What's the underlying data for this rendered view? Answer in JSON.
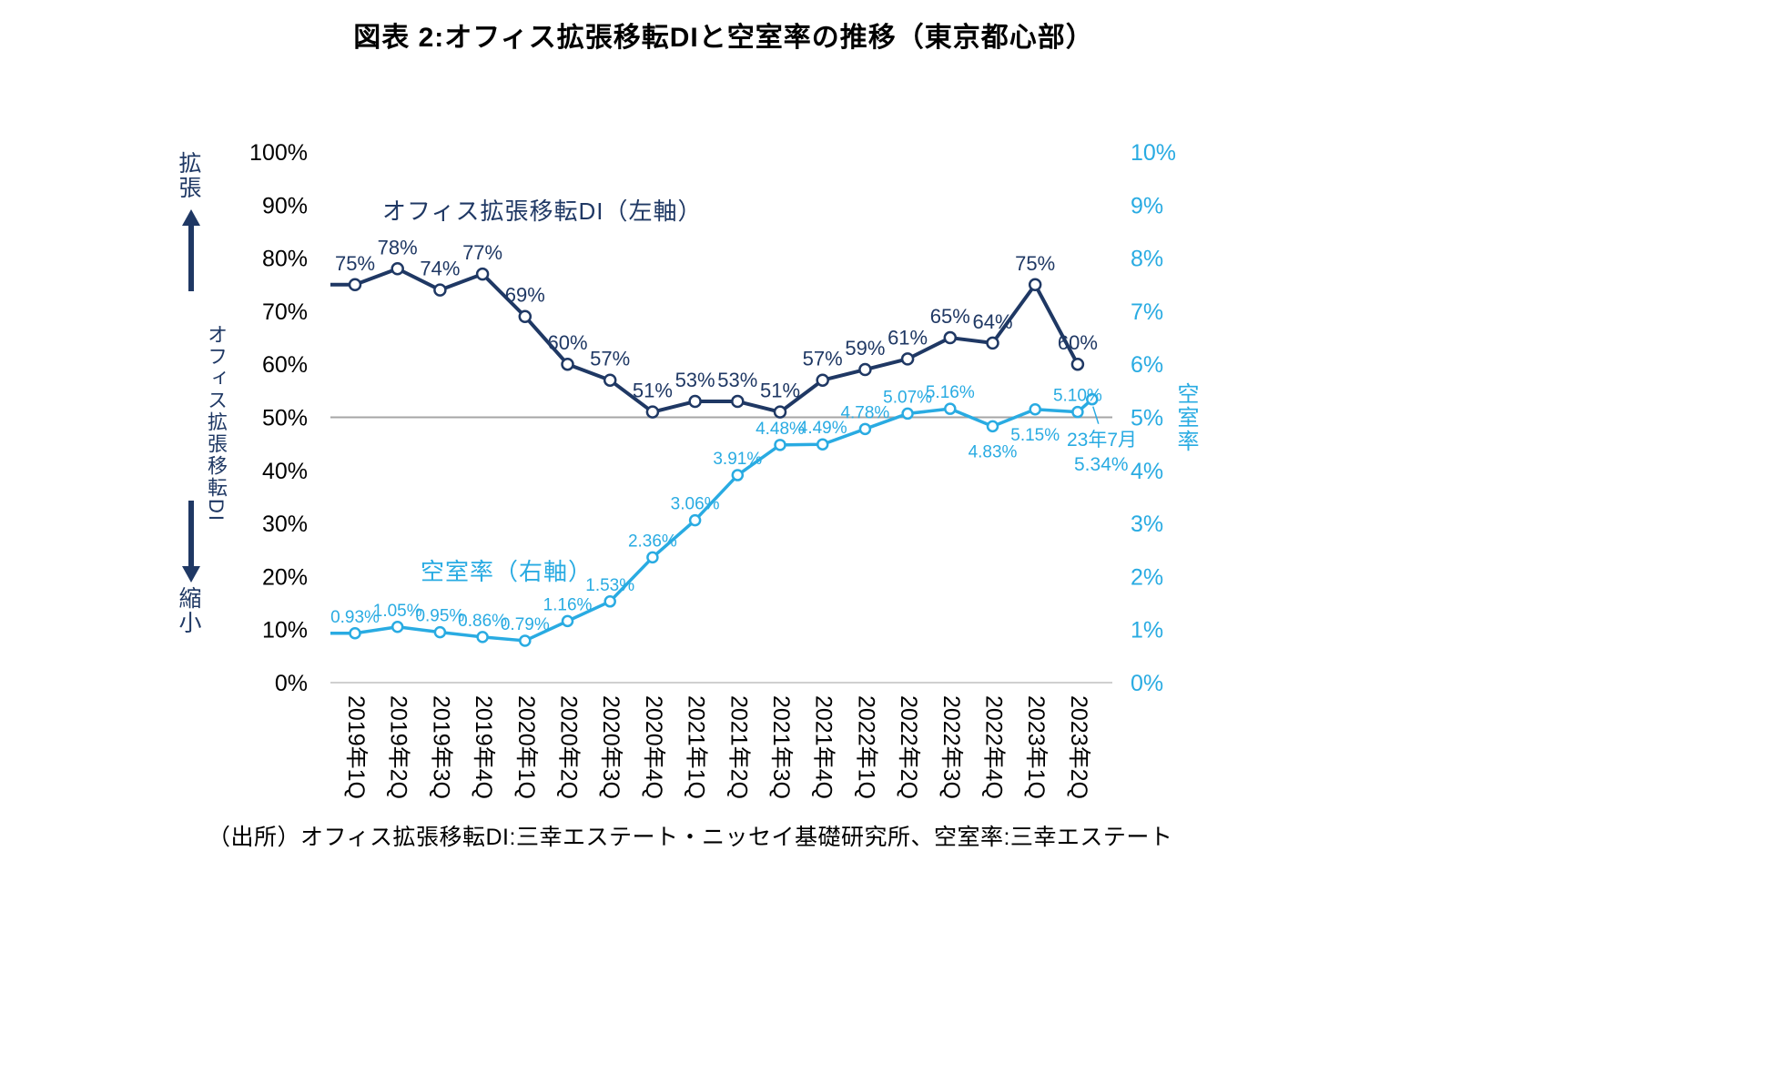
{
  "title": "図表 2:オフィス拡張移転DIと空室率の推移（東京都心部）",
  "source_note": "（出所）オフィス拡張移転DI:三幸エステート・ニッセイ基礎研究所、空室率:三幸エステート",
  "colors": {
    "di_line": "#1F3864",
    "vacancy_line": "#29ABE2",
    "reference_line": "#A6A6A6",
    "baseline": "#C0C0C0",
    "text": "#000000"
  },
  "left_axis": {
    "title": "オフィス拡張移転DI",
    "annotation_top": "拡張",
    "annotation_bottom": "縮小",
    "min": 0,
    "max": 100,
    "ticks": [
      "0%",
      "10%",
      "20%",
      "30%",
      "40%",
      "50%",
      "60%",
      "70%",
      "80%",
      "90%",
      "100%"
    ]
  },
  "right_axis": {
    "title": "空室率",
    "min": 0,
    "max": 10,
    "ticks": [
      "0%",
      "1%",
      "2%",
      "3%",
      "4%",
      "5%",
      "6%",
      "7%",
      "8%",
      "9%",
      "10%"
    ]
  },
  "series_labels": {
    "di": "オフィス拡張移転DI（左軸）",
    "vacancy": "空室率（右軸）"
  },
  "annotation": {
    "label": "23年7月",
    "value": "5.34%"
  },
  "chart_data": {
    "type": "line",
    "title": "図表 2:オフィス拡張移転DIと空室率の推移（東京都心部）",
    "grid": "off",
    "legend_position": "inline-text-labels",
    "left_range": [
      0,
      100
    ],
    "right_range": [
      0,
      10
    ],
    "reference_line_left_value": 50,
    "categories": [
      "2019年1Q",
      "2019年2Q",
      "2019年3Q",
      "2019年4Q",
      "2020年1Q",
      "2020年2Q",
      "2020年3Q",
      "2020年4Q",
      "2021年1Q",
      "2021年2Q",
      "2021年3Q",
      "2021年4Q",
      "2022年1Q",
      "2022年2Q",
      "2022年3Q",
      "2022年4Q",
      "2023年1Q",
      "2023年2Q"
    ],
    "series": [
      {
        "name": "オフィス拡張移転DI（左軸）",
        "axis": "left",
        "color": "#1F3864",
        "values": [
          75,
          78,
          74,
          77,
          69,
          60,
          57,
          51,
          53,
          53,
          51,
          57,
          59,
          61,
          65,
          64,
          75,
          60
        ],
        "labels": [
          "75%",
          "78%",
          "74%",
          "77%",
          "69%",
          "60%",
          "57%",
          "51%",
          "53%",
          "53%",
          "51%",
          "57%",
          "59%",
          "61%",
          "65%",
          "64%",
          "75%",
          "60%"
        ]
      },
      {
        "name": "空室率（右軸）",
        "axis": "right",
        "color": "#29ABE2",
        "values": [
          0.93,
          1.05,
          0.95,
          0.86,
          0.79,
          1.16,
          1.53,
          2.36,
          3.06,
          3.91,
          4.48,
          4.49,
          4.78,
          5.07,
          5.16,
          4.83,
          5.15,
          5.1
        ],
        "labels": [
          "0.93%",
          "1.05%",
          "0.95%",
          "0.86%",
          "0.79%",
          "1.16%",
          "1.53%",
          "2.36%",
          "3.06%",
          "3.91%",
          "4.48%",
          "4.49%",
          "4.78%",
          "5.07%",
          "5.16%",
          "4.83%",
          "5.15%",
          "5.10%"
        ],
        "label_positions": [
          "above",
          "above",
          "above",
          "above",
          "above",
          "above",
          "above",
          "above",
          "above",
          "above",
          "above",
          "above",
          "above",
          "above",
          "above",
          "below",
          "below",
          "above"
        ]
      }
    ],
    "extra_point": {
      "series": "空室率（右軸）",
      "x_offset_categories": 0.34,
      "value": 5.34,
      "label": "23年7月",
      "value_label": "5.34%"
    }
  }
}
